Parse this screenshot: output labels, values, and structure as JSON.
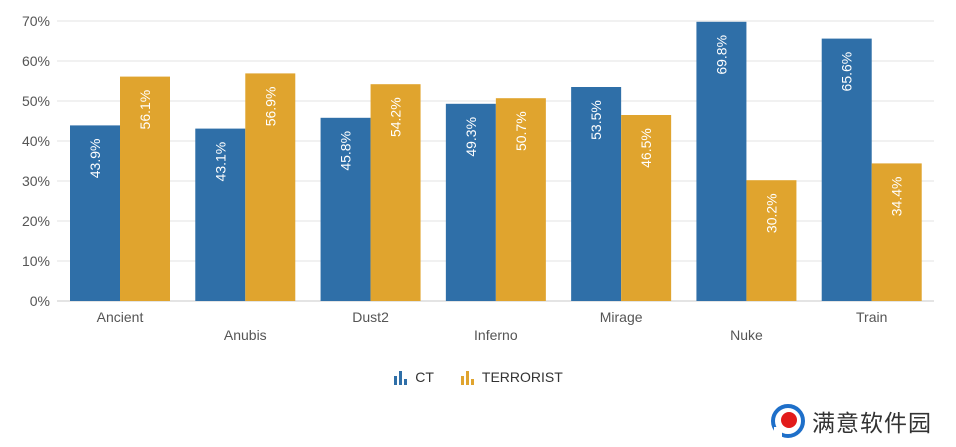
{
  "chart_data": {
    "type": "bar",
    "categories": [
      "Ancient",
      "Anubis",
      "Dust2",
      "Inferno",
      "Mirage",
      "Nuke",
      "Train"
    ],
    "series": [
      {
        "name": "CT",
        "values": [
          43.9,
          43.1,
          45.8,
          49.3,
          53.5,
          69.8,
          65.6
        ],
        "color": "#2f6fa8"
      },
      {
        "name": "TERRORIST",
        "values": [
          56.1,
          56.9,
          54.2,
          50.7,
          46.5,
          30.2,
          34.4
        ],
        "color": "#e0a42e"
      }
    ],
    "data_labels": [
      [
        "43.9%",
        "43.1%",
        "45.8%",
        "49.3%",
        "53.5%",
        "69.8%",
        "65.6%"
      ],
      [
        "56.1%",
        "56.9%",
        "54.2%",
        "50.7%",
        "46.5%",
        "30.2%",
        "34.4%"
      ]
    ],
    "y_ticks": [
      "0%",
      "10%",
      "20%",
      "30%",
      "40%",
      "50%",
      "60%",
      "70%"
    ],
    "ylim": [
      0,
      70
    ],
    "grid": true,
    "legend_position": "bottom-center",
    "title": "",
    "xlabel": "",
    "ylabel": ""
  },
  "legend": {
    "items": [
      {
        "label": "CT",
        "icon": "bar-chart-icon",
        "color": "#2f6fa8"
      },
      {
        "label": "TERRORIST",
        "icon": "bar-chart-icon",
        "color": "#e0a42e"
      }
    ]
  },
  "watermark": {
    "text": "满意软件园",
    "icon": "logo-icon",
    "colors": {
      "ring": "#1e6fc9",
      "dot": "#e21b1b"
    }
  }
}
